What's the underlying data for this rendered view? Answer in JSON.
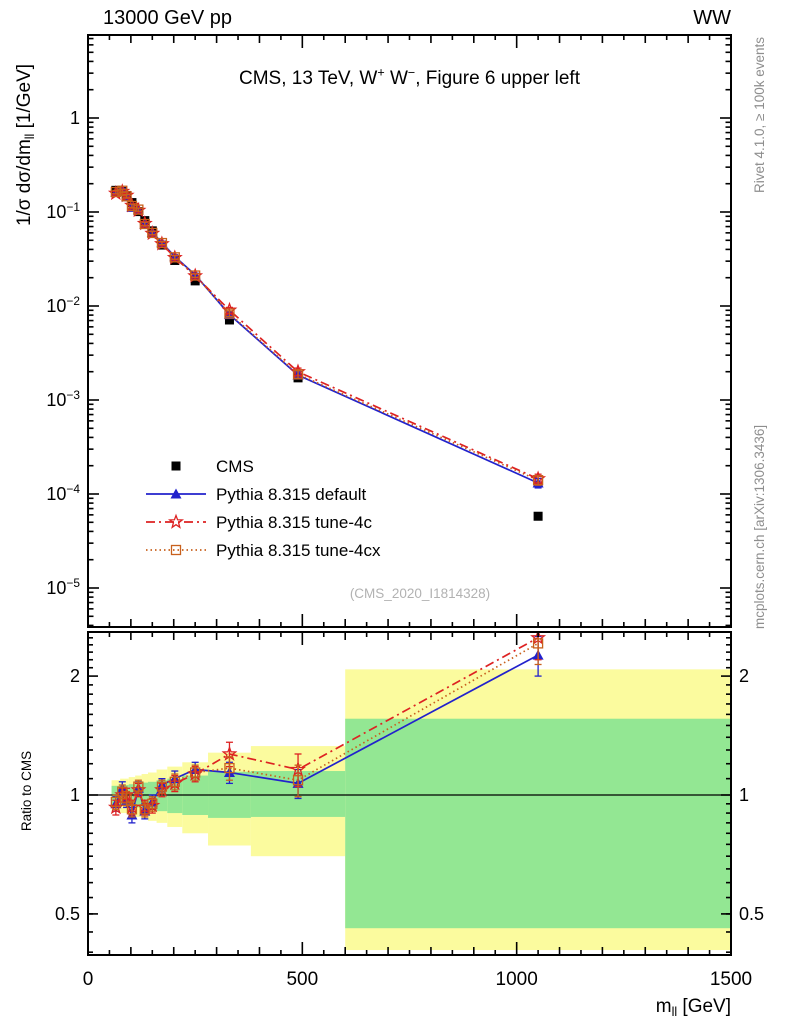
{
  "header": {
    "left": "13000 GeV pp",
    "right": "WW"
  },
  "watermark": "(CMS_2020_I1814328)",
  "side": {
    "top": "Rivet 4.1.0, ≥ 100k events",
    "bottom": "mcplots.cern.ch [arXiv:1306.3436]"
  },
  "colors": {
    "frame": "#000000",
    "gray_text": "#8e8e8e",
    "watermark_gray": "#b2b2b2",
    "blue": "#2222cc",
    "red": "#dd2222",
    "orange": "#c8601c",
    "band_yellow": "#fbfb9e",
    "band_green": "#93e793"
  },
  "chart_data": {
    "type": "line",
    "title_parts": [
      {
        "t": "CMS, 13 TeV, W"
      },
      {
        "t": "+",
        "sup": true
      },
      {
        "t": " W"
      },
      {
        "t": "−",
        "sup": true
      },
      {
        "t": ", Figure 6 upper left"
      }
    ],
    "x_axis": {
      "label_parts": [
        {
          "t": "m"
        },
        {
          "t": "ll",
          "sub": true
        },
        {
          "t": " [GeV]"
        }
      ],
      "min": 0,
      "max": 1500,
      "major_ticks": [
        {
          "v": 0,
          "label": "0"
        },
        {
          "v": 500,
          "label": "500"
        },
        {
          "v": 1000,
          "label": "1000"
        },
        {
          "v": 1500,
          "label": "1500"
        }
      ],
      "mid_step": 100,
      "minor_step": 50
    },
    "main_y": {
      "label_parts": [
        {
          "t": "1/σ dσ/dm"
        },
        {
          "t": "ll",
          "sub": true
        },
        {
          "t": " [1/GeV]"
        }
      ],
      "scale": "log",
      "ylim": [
        3.7e-06,
        7.6
      ],
      "tick_exponents": [
        0,
        -1,
        -2,
        -3,
        -4,
        -5
      ]
    },
    "ratio_y": {
      "label": "Ratio to CMS",
      "scale": "log",
      "ylim": [
        0.394,
        2.6
      ],
      "major_ticks": [
        {
          "v": 2,
          "label": "2"
        },
        {
          "v": 1,
          "label": "1"
        },
        {
          "v": 0.5,
          "label": "0.5"
        }
      ]
    },
    "bin_edges": [
      55,
      75,
      85,
      95,
      110,
      125,
      140,
      160,
      185,
      220,
      280,
      380,
      600,
      1500
    ],
    "bin_centers": [
      65,
      80,
      90,
      102.5,
      117.5,
      132.5,
      150,
      172.5,
      202.5,
      250,
      330,
      490,
      1050
    ],
    "cms": {
      "label": "CMS",
      "marker": "square-filled",
      "color": "#000000",
      "values": [
        0.17,
        0.165,
        0.15,
        0.126,
        0.101,
        0.081,
        0.063,
        0.0445,
        0.0305,
        0.0185,
        0.0071,
        0.00172,
        5.8e-05
      ]
    },
    "series": [
      {
        "label": "Pythia 8.315 default",
        "color": "#2222cc",
        "line": "solid",
        "marker": "triangle-filled",
        "ratio": [
          0.95,
          1.04,
          0.97,
          0.89,
          1.04,
          0.91,
          0.96,
          1.06,
          1.1,
          1.16,
          1.14,
          1.07,
          2.26
        ],
        "ratio_err": [
          0.04,
          0.04,
          0.04,
          0.04,
          0.04,
          0.04,
          0.04,
          0.04,
          0.05,
          0.05,
          0.07,
          0.09,
          0.26
        ]
      },
      {
        "label": "Pythia 8.315 tune-4c",
        "color": "#dd2222",
        "line": "dashdot",
        "marker": "star-open",
        "ratio": [
          0.93,
          1.0,
          1.0,
          0.93,
          1.03,
          0.93,
          0.94,
          1.03,
          1.07,
          1.13,
          1.27,
          1.16,
          2.5
        ],
        "ratio_err": [
          0.04,
          0.04,
          0.04,
          0.04,
          0.04,
          0.04,
          0.04,
          0.04,
          0.05,
          0.05,
          0.09,
          0.11,
          0.3
        ]
      },
      {
        "label": "Pythia 8.315 tune-4cx",
        "color": "#c8601c",
        "line": "dotted",
        "marker": "square-open",
        "ratio": [
          0.96,
          1.02,
          0.98,
          0.92,
          1.05,
          0.92,
          0.95,
          1.05,
          1.08,
          1.14,
          1.17,
          1.09,
          2.42
        ],
        "ratio_err": [
          0.04,
          0.04,
          0.04,
          0.04,
          0.04,
          0.04,
          0.04,
          0.04,
          0.05,
          0.05,
          0.08,
          0.1,
          0.28
        ]
      }
    ],
    "ratio_bands": {
      "yellow": "#fbfb9e",
      "green": "#93e793",
      "bins": [
        {
          "x0": 55,
          "x1": 75,
          "yellow": [
            0.91,
            1.09
          ],
          "green": [
            0.945,
            1.055
          ]
        },
        {
          "x0": 75,
          "x1": 85,
          "yellow": [
            0.9,
            1.1
          ],
          "green": [
            0.94,
            1.06
          ]
        },
        {
          "x0": 85,
          "x1": 95,
          "yellow": [
            0.9,
            1.1
          ],
          "green": [
            0.94,
            1.06
          ]
        },
        {
          "x0": 95,
          "x1": 110,
          "yellow": [
            0.89,
            1.11
          ],
          "green": [
            0.935,
            1.065
          ]
        },
        {
          "x0": 110,
          "x1": 125,
          "yellow": [
            0.88,
            1.12
          ],
          "green": [
            0.93,
            1.07
          ]
        },
        {
          "x0": 125,
          "x1": 140,
          "yellow": [
            0.87,
            1.13
          ],
          "green": [
            0.925,
            1.075
          ]
        },
        {
          "x0": 140,
          "x1": 160,
          "yellow": [
            0.86,
            1.14
          ],
          "green": [
            0.92,
            1.08
          ]
        },
        {
          "x0": 160,
          "x1": 185,
          "yellow": [
            0.85,
            1.16
          ],
          "green": [
            0.91,
            1.09
          ]
        },
        {
          "x0": 185,
          "x1": 220,
          "yellow": [
            0.83,
            1.18
          ],
          "green": [
            0.9,
            1.1
          ]
        },
        {
          "x0": 220,
          "x1": 280,
          "yellow": [
            0.8,
            1.21
          ],
          "green": [
            0.89,
            1.12
          ]
        },
        {
          "x0": 280,
          "x1": 380,
          "yellow": [
            0.745,
            1.28
          ],
          "green": [
            0.875,
            1.145
          ]
        },
        {
          "x0": 380,
          "x1": 600,
          "yellow": [
            0.7,
            1.33
          ],
          "green": [
            0.88,
            1.15
          ]
        },
        {
          "x0": 600,
          "x1": 1500,
          "yellow": [
            0.405,
            2.08
          ],
          "green": [
            0.46,
            1.56
          ]
        }
      ]
    }
  }
}
